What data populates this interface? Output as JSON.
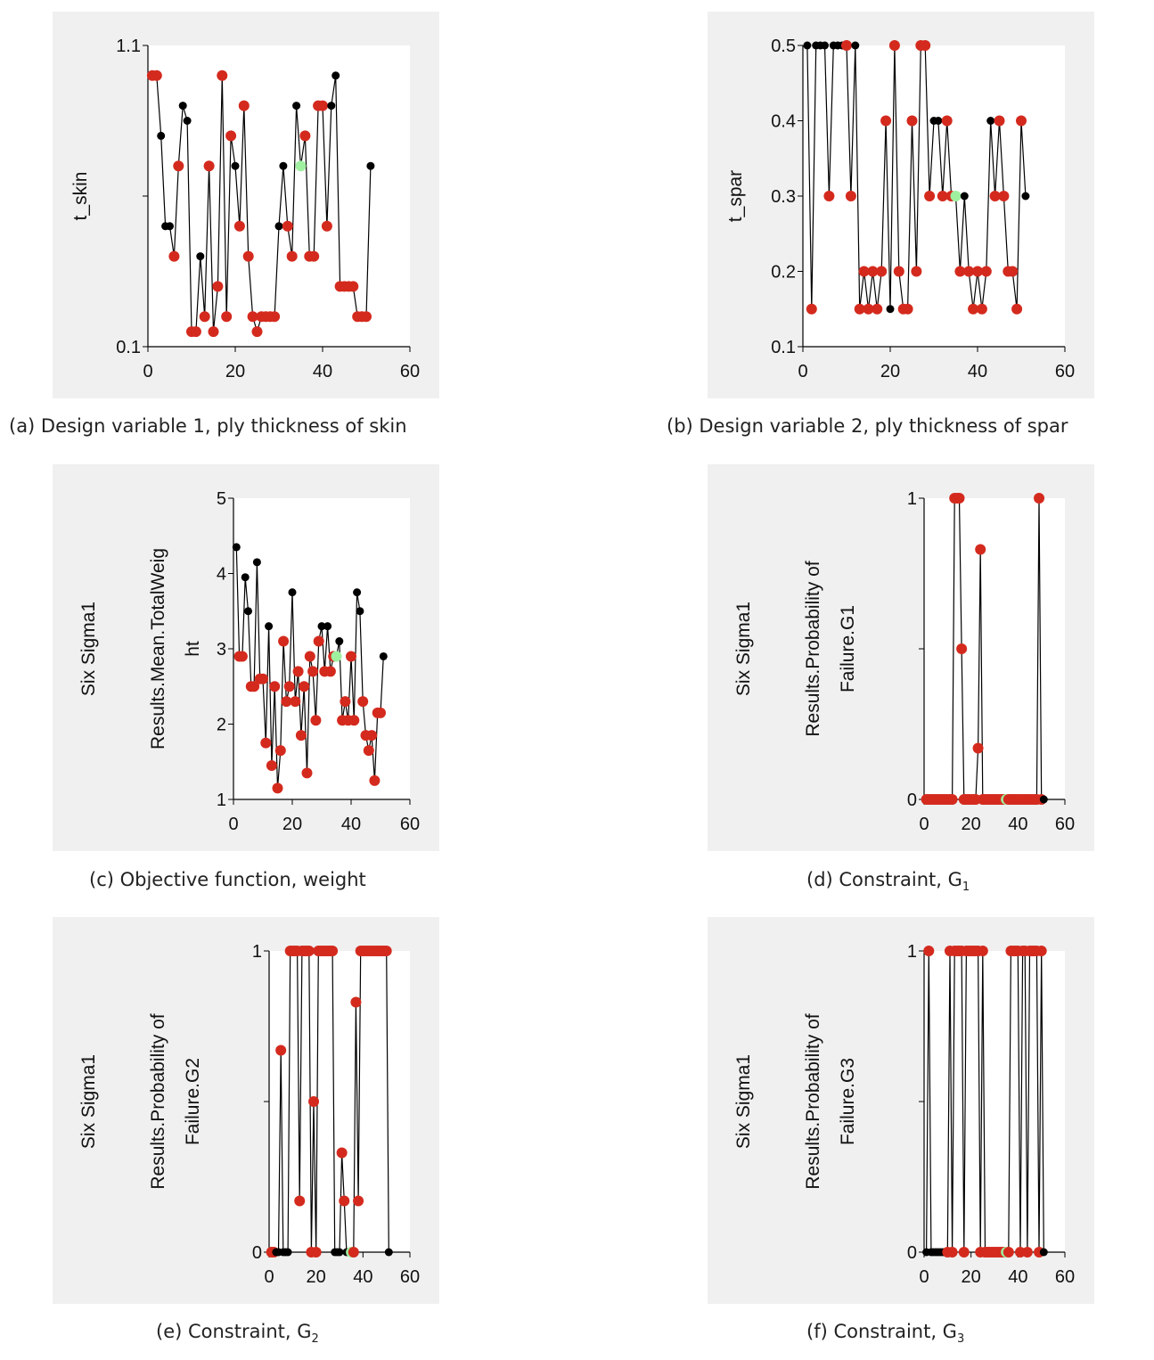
{
  "captions": {
    "a": "(a) Design variable 1, ply thickness of skin",
    "b": "(b) Design variable 2, ply thickness of spar",
    "c": "(c) Objective function, weight",
    "d_main": "(d) Constraint, G",
    "d_sub": "1",
    "e_main": "(e) Constraint, G",
    "e_sub": "2",
    "f_main": "(f) Constraint, G",
    "f_sub": "3"
  },
  "colors": {
    "panel_bg": "#f0f0f0",
    "plot_bg": "#ffffff",
    "line": "#000000",
    "point_feasible": "#000000",
    "point_infeasible": "#d42a1e",
    "point_best": "#9ff09f"
  },
  "chart_data": [
    {
      "id": "a",
      "type": "line",
      "ylabel_lines": [
        "t_skin"
      ],
      "xlim": [
        0,
        60
      ],
      "ylim": [
        0.1,
        1.1
      ],
      "xticks": [
        0,
        20,
        40,
        60
      ],
      "yticks": [
        0.1,
        0.6,
        1.1
      ],
      "yticklabels": [
        "0.1",
        "",
        "1.1"
      ],
      "x": [
        1,
        2,
        3,
        4,
        5,
        6,
        7,
        8,
        9,
        10,
        11,
        12,
        13,
        14,
        15,
        16,
        17,
        18,
        19,
        20,
        21,
        22,
        23,
        24,
        25,
        26,
        27,
        28,
        29,
        30,
        31,
        32,
        33,
        34,
        35,
        36,
        37,
        38,
        39,
        40,
        41,
        42,
        43,
        44,
        45,
        46,
        47,
        48,
        49,
        50,
        51
      ],
      "y": [
        1.0,
        1.0,
        0.8,
        0.5,
        0.5,
        0.4,
        0.7,
        0.9,
        0.85,
        0.15,
        0.15,
        0.4,
        0.2,
        0.7,
        0.15,
        0.3,
        1.0,
        0.2,
        0.8,
        0.7,
        0.5,
        0.9,
        0.4,
        0.2,
        0.15,
        0.2,
        0.2,
        0.2,
        0.2,
        0.5,
        0.7,
        0.5,
        0.4,
        0.9,
        0.7,
        0.8,
        0.4,
        0.4,
        0.9,
        0.9,
        0.5,
        0.9,
        1.0,
        0.3,
        0.3,
        0.3,
        0.3,
        0.2,
        0.2,
        0.2,
        0.7
      ],
      "state": [
        "R",
        "R",
        "N",
        "B",
        "B",
        "R",
        "R",
        "B",
        "N",
        "R",
        "R",
        "B",
        "R",
        "R",
        "R",
        "R",
        "R",
        "R",
        "R",
        "B",
        "R",
        "R",
        "R",
        "R",
        "R",
        "R",
        "R",
        "R",
        "R",
        "B",
        "B",
        "R",
        "R",
        "B",
        "G",
        "R",
        "R",
        "R",
        "R",
        "R",
        "R",
        "B",
        "B",
        "R",
        "R",
        "R",
        "R",
        "R",
        "R",
        "R",
        "B"
      ]
    },
    {
      "id": "b",
      "type": "line",
      "ylabel_lines": [
        "t_spar"
      ],
      "xlim": [
        0,
        60
      ],
      "ylim": [
        0.1,
        0.5
      ],
      "xticks": [
        0,
        20,
        40,
        60
      ],
      "yticks": [
        0.1,
        0.2,
        0.3,
        0.4,
        0.5
      ],
      "yticklabels": [
        "0.1",
        "0.2",
        "0.3",
        "0.4",
        "0.5"
      ],
      "x": [
        1,
        2,
        3,
        4,
        5,
        6,
        7,
        8,
        9,
        10,
        11,
        12,
        13,
        14,
        15,
        16,
        17,
        18,
        19,
        20,
        21,
        22,
        23,
        24,
        25,
        26,
        27,
        28,
        29,
        30,
        31,
        32,
        33,
        34,
        35,
        36,
        37,
        38,
        39,
        40,
        41,
        42,
        43,
        44,
        45,
        46,
        47,
        48,
        49,
        50,
        51
      ],
      "y": [
        0.5,
        0.15,
        0.5,
        0.5,
        0.5,
        0.3,
        0.5,
        0.5,
        0.5,
        0.5,
        0.3,
        0.5,
        0.15,
        0.2,
        0.15,
        0.2,
        0.15,
        0.2,
        0.4,
        0.15,
        0.5,
        0.2,
        0.15,
        0.15,
        0.4,
        0.2,
        0.5,
        0.5,
        0.3,
        0.4,
        0.4,
        0.3,
        0.4,
        0.3,
        0.3,
        0.2,
        0.3,
        0.2,
        0.15,
        0.2,
        0.15,
        0.2,
        0.4,
        0.3,
        0.4,
        0.3,
        0.2,
        0.2,
        0.15,
        0.4,
        0.3
      ],
      "state": [
        "B",
        "R",
        "B",
        "B",
        "B",
        "R",
        "B",
        "B",
        "B",
        "R",
        "R",
        "B",
        "R",
        "R",
        "R",
        "R",
        "R",
        "R",
        "R",
        "B",
        "R",
        "R",
        "R",
        "R",
        "R",
        "R",
        "R",
        "R",
        "R",
        "B",
        "B",
        "R",
        "R",
        "R",
        "G",
        "R",
        "B",
        "R",
        "R",
        "R",
        "R",
        "R",
        "B",
        "R",
        "R",
        "R",
        "R",
        "R",
        "R",
        "R",
        "B"
      ]
    },
    {
      "id": "c",
      "type": "line",
      "ylabel_lines": [
        "Six Sigma1",
        "Results.Mean.TotalWeig",
        "ht"
      ],
      "xlim": [
        0,
        60
      ],
      "ylim": [
        1,
        5
      ],
      "xticks": [
        0,
        20,
        40,
        60
      ],
      "yticks": [
        1,
        2,
        3,
        4,
        5
      ],
      "yticklabels": [
        "1",
        "2",
        "3",
        "4",
        "5"
      ],
      "x": [
        1,
        2,
        3,
        4,
        5,
        6,
        7,
        8,
        9,
        10,
        11,
        12,
        13,
        14,
        15,
        16,
        17,
        18,
        19,
        20,
        21,
        22,
        23,
        24,
        25,
        26,
        27,
        28,
        29,
        30,
        31,
        32,
        33,
        34,
        35,
        36,
        37,
        38,
        39,
        40,
        41,
        42,
        43,
        44,
        45,
        46,
        47,
        48,
        49,
        50,
        51
      ],
      "y": [
        4.35,
        2.9,
        2.9,
        3.95,
        3.5,
        2.5,
        2.5,
        4.15,
        2.6,
        2.6,
        1.75,
        3.3,
        1.45,
        2.5,
        1.15,
        1.65,
        3.1,
        2.3,
        2.5,
        3.75,
        2.3,
        2.7,
        1.85,
        2.5,
        1.35,
        2.9,
        2.7,
        2.05,
        3.1,
        3.3,
        2.7,
        3.3,
        2.7,
        2.9,
        2.9,
        3.1,
        2.05,
        2.3,
        2.05,
        2.9,
        2.05,
        3.75,
        3.5,
        2.3,
        1.85,
        1.65,
        1.85,
        1.25,
        2.15,
        2.15,
        2.9
      ],
      "state": [
        "B",
        "R",
        "R",
        "B",
        "B",
        "R",
        "R",
        "B",
        "R",
        "R",
        "R",
        "B",
        "R",
        "R",
        "R",
        "R",
        "R",
        "R",
        "R",
        "B",
        "R",
        "R",
        "R",
        "R",
        "R",
        "R",
        "R",
        "R",
        "R",
        "B",
        "R",
        "B",
        "R",
        "R",
        "G",
        "B",
        "R",
        "R",
        "R",
        "R",
        "R",
        "B",
        "B",
        "R",
        "R",
        "R",
        "R",
        "R",
        "R",
        "R",
        "B"
      ]
    },
    {
      "id": "d",
      "type": "line",
      "ylabel_lines": [
        "Six Sigma1",
        "Results.Probability of",
        "Failure.G1"
      ],
      "xlim": [
        0,
        60
      ],
      "ylim": [
        0,
        1
      ],
      "xticks": [
        0,
        20,
        40,
        60
      ],
      "yticks": [
        0,
        0.5,
        1
      ],
      "yticklabels": [
        "0",
        "",
        "1"
      ],
      "x": [
        1,
        2,
        3,
        4,
        5,
        6,
        7,
        8,
        9,
        10,
        11,
        12,
        13,
        14,
        15,
        16,
        17,
        18,
        19,
        20,
        21,
        22,
        23,
        24,
        25,
        26,
        27,
        28,
        29,
        30,
        31,
        32,
        33,
        34,
        35,
        36,
        37,
        38,
        39,
        40,
        41,
        42,
        43,
        44,
        45,
        46,
        47,
        48,
        49,
        50,
        51
      ],
      "y": [
        0,
        0,
        0,
        0,
        0,
        0,
        0,
        0,
        0,
        0,
        0,
        0,
        1,
        1,
        1,
        0.5,
        0,
        0,
        0,
        0,
        0,
        0,
        0.17,
        0.83,
        0,
        0,
        0,
        0,
        0,
        0,
        0,
        0,
        0,
        0,
        0,
        0,
        0,
        0,
        0,
        0,
        0,
        0,
        0,
        0,
        0,
        0,
        0,
        0,
        1,
        0,
        0
      ],
      "state": [
        "R",
        "R",
        "R",
        "R",
        "R",
        "R",
        "R",
        "R",
        "R",
        "R",
        "R",
        "R",
        "R",
        "R",
        "R",
        "R",
        "R",
        "R",
        "R",
        "R",
        "R",
        "R",
        "R",
        "R",
        "R",
        "R",
        "R",
        "R",
        "R",
        "R",
        "R",
        "R",
        "R",
        "R",
        "G",
        "R",
        "R",
        "R",
        "R",
        "R",
        "R",
        "R",
        "R",
        "R",
        "R",
        "R",
        "R",
        "R",
        "R",
        "R",
        "B"
      ]
    },
    {
      "id": "e",
      "type": "line",
      "ylabel_lines": [
        "Six Sigma1",
        "Results.Probability of",
        "Failure.G2"
      ],
      "xlim": [
        0,
        60
      ],
      "ylim": [
        0,
        1
      ],
      "xticks": [
        0,
        20,
        40,
        60
      ],
      "yticks": [
        0,
        0.5,
        1
      ],
      "yticklabels": [
        "0",
        "",
        "1"
      ],
      "x": [
        1,
        2,
        3,
        4,
        5,
        6,
        7,
        8,
        9,
        10,
        11,
        12,
        13,
        14,
        15,
        16,
        17,
        18,
        19,
        20,
        21,
        22,
        23,
        24,
        25,
        26,
        27,
        28,
        29,
        30,
        31,
        32,
        33,
        34,
        35,
        36,
        37,
        38,
        39,
        40,
        41,
        42,
        43,
        44,
        45,
        46,
        47,
        48,
        49,
        50,
        51
      ],
      "y": [
        0,
        0,
        0,
        0,
        0.67,
        0,
        0,
        0,
        1,
        1,
        1,
        1,
        0.17,
        1,
        1,
        1,
        1,
        0,
        0.5,
        0,
        1,
        1,
        1,
        1,
        1,
        1,
        1,
        0,
        0,
        0,
        0.33,
        0.17,
        0,
        0,
        0,
        0,
        0.83,
        0.17,
        1,
        1,
        1,
        1,
        1,
        1,
        1,
        1,
        1,
        1,
        1,
        1,
        0
      ],
      "state": [
        "R",
        "R",
        "B",
        "B",
        "R",
        "B",
        "B",
        "B",
        "R",
        "R",
        "R",
        "R",
        "R",
        "R",
        "R",
        "R",
        "R",
        "R",
        "R",
        "R",
        "R",
        "R",
        "R",
        "R",
        "R",
        "R",
        "R",
        "B",
        "B",
        "B",
        "R",
        "R",
        "B",
        "B",
        "G",
        "R",
        "R",
        "R",
        "R",
        "R",
        "R",
        "R",
        "R",
        "R",
        "R",
        "R",
        "R",
        "R",
        "R",
        "R",
        "B"
      ]
    },
    {
      "id": "f",
      "type": "line",
      "ylabel_lines": [
        "Six Sigma1",
        "Results.Probability of",
        "Failure.G3"
      ],
      "xlim": [
        0,
        60
      ],
      "ylim": [
        0,
        1
      ],
      "xticks": [
        0,
        20,
        40,
        60
      ],
      "yticks": [
        0,
        0.5,
        1
      ],
      "yticklabels": [
        "0",
        "",
        "1"
      ],
      "x": [
        1,
        2,
        3,
        4,
        5,
        6,
        7,
        8,
        9,
        10,
        11,
        12,
        13,
        14,
        15,
        16,
        17,
        18,
        19,
        20,
        21,
        22,
        23,
        24,
        25,
        26,
        27,
        28,
        29,
        30,
        31,
        32,
        33,
        34,
        35,
        36,
        37,
        38,
        39,
        40,
        41,
        42,
        43,
        44,
        45,
        46,
        47,
        48,
        49,
        50,
        51
      ],
      "y": [
        0,
        1,
        0,
        0,
        0,
        0,
        0,
        0,
        0,
        0,
        1,
        0,
        1,
        1,
        1,
        1,
        0,
        1,
        1,
        1,
        1,
        1,
        1,
        0,
        1,
        0,
        0,
        0,
        0,
        0,
        0,
        0,
        0,
        0,
        0,
        0,
        1,
        1,
        1,
        1,
        0,
        1,
        1,
        0,
        1,
        1,
        1,
        1,
        0,
        1,
        0
      ],
      "state": [
        "B",
        "R",
        "B",
        "B",
        "B",
        "B",
        "B",
        "B",
        "B",
        "R",
        "R",
        "R",
        "R",
        "R",
        "R",
        "R",
        "R",
        "R",
        "R",
        "R",
        "R",
        "R",
        "R",
        "R",
        "R",
        "R",
        "R",
        "R",
        "R",
        "R",
        "R",
        "R",
        "R",
        "R",
        "G",
        "R",
        "R",
        "R",
        "R",
        "R",
        "R",
        "R",
        "R",
        "R",
        "R",
        "R",
        "R",
        "R",
        "R",
        "R",
        "B"
      ]
    }
  ]
}
